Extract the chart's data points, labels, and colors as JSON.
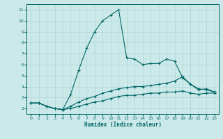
{
  "xlabel": "Humidex (Indice chaleur)",
  "background_color": "#cce9e9",
  "grid_color": "#afd4d4",
  "line_color": "#006666",
  "xlim": [
    -0.5,
    23.5
  ],
  "ylim": [
    1.5,
    11.5
  ],
  "xticks": [
    0,
    1,
    2,
    3,
    4,
    5,
    6,
    7,
    8,
    9,
    10,
    11,
    12,
    13,
    14,
    15,
    16,
    17,
    18,
    19,
    20,
    21,
    22,
    23
  ],
  "yticks": [
    2,
    3,
    4,
    5,
    6,
    7,
    8,
    9,
    10,
    11
  ],
  "series1_x": [
    0,
    1,
    2,
    3,
    4,
    5,
    6,
    7,
    8,
    9,
    10,
    11,
    12,
    13,
    14,
    15,
    16,
    17,
    18,
    19,
    20,
    21,
    22,
    23
  ],
  "series1_y": [
    2.5,
    2.5,
    2.2,
    2.0,
    1.9,
    3.3,
    5.5,
    7.5,
    9.0,
    10.0,
    10.5,
    11.0,
    6.6,
    6.5,
    6.0,
    6.1,
    6.1,
    6.5,
    6.3,
    4.8,
    4.2,
    3.7,
    3.8,
    3.5
  ],
  "series2_x": [
    0,
    1,
    2,
    3,
    4,
    5,
    6,
    7,
    8,
    9,
    10,
    11,
    12,
    13,
    14,
    15,
    16,
    17,
    18,
    19,
    20,
    21,
    22,
    23
  ],
  "series2_y": [
    2.5,
    2.5,
    2.2,
    2.0,
    1.9,
    2.2,
    2.6,
    2.9,
    3.1,
    3.4,
    3.6,
    3.8,
    3.9,
    4.0,
    4.0,
    4.1,
    4.2,
    4.3,
    4.5,
    4.9,
    4.2,
    3.8,
    3.7,
    3.5
  ],
  "series3_x": [
    0,
    1,
    2,
    3,
    4,
    5,
    6,
    7,
    8,
    9,
    10,
    11,
    12,
    13,
    14,
    15,
    16,
    17,
    18,
    19,
    20,
    21,
    22,
    23
  ],
  "series3_y": [
    2.5,
    2.5,
    2.2,
    2.0,
    1.9,
    2.0,
    2.2,
    2.4,
    2.6,
    2.7,
    2.9,
    3.1,
    3.2,
    3.2,
    3.3,
    3.4,
    3.4,
    3.5,
    3.5,
    3.6,
    3.4,
    3.3,
    3.4,
    3.4
  ]
}
